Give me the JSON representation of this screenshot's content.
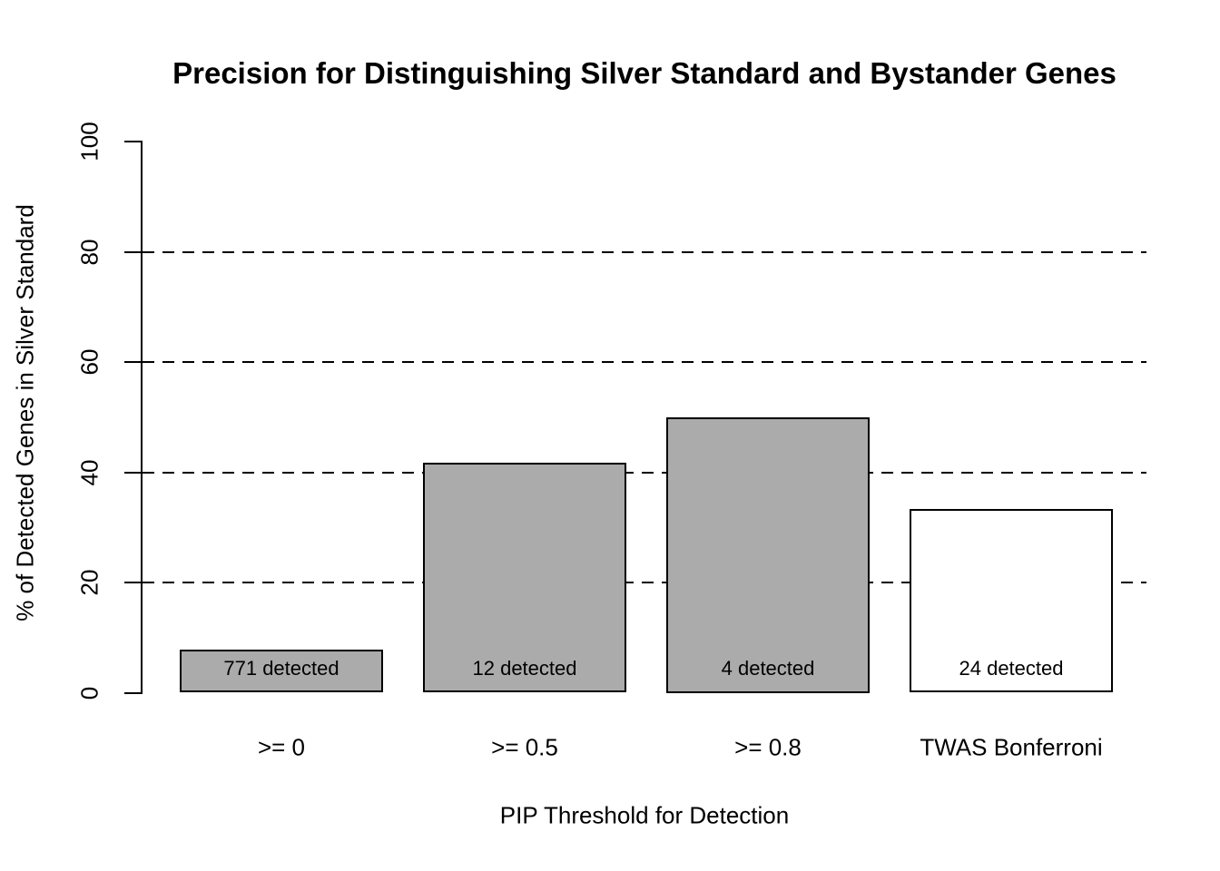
{
  "chart_data": {
    "type": "bar",
    "title": "Precision for Distinguishing Silver Standard and Bystander Genes",
    "xlabel": "PIP Threshold for Detection",
    "ylabel": "% of Detected Genes in Silver Standard",
    "categories": [
      ">= 0",
      ">= 0.5",
      ">= 0.8",
      "TWAS Bonferroni"
    ],
    "values": [
      7.8,
      41.7,
      50,
      33.3
    ],
    "bar_labels": [
      "771 detected",
      "12 detected",
      "4 detected",
      "24 detected"
    ],
    "bar_fill_colors": [
      "#ababab",
      "#ababab",
      "#ababab",
      "#ffffff"
    ],
    "bar_border_color": "#000000",
    "ylim": [
      0,
      100
    ],
    "yticks": [
      "0",
      "20",
      "40",
      "60",
      "80",
      "100"
    ],
    "ytick_values": [
      0,
      20,
      40,
      60,
      80,
      100
    ],
    "gridline_values": [
      20,
      40,
      60,
      80
    ],
    "grid_style": "dashed",
    "legend_position": "none",
    "background_color": "#ffffff",
    "axis_color": "#000000"
  }
}
